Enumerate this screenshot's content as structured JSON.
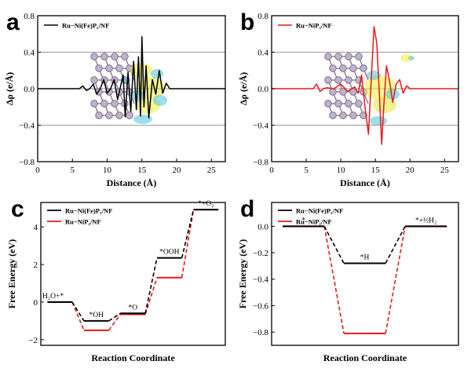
{
  "chart_data": [
    {
      "id": "a",
      "panel_label": "a",
      "type": "line",
      "title": "",
      "xlabel": "Distance (Å)",
      "ylabel": "Δρ (e/Å)",
      "xlim": [
        0,
        27
      ],
      "ylim": [
        -0.8,
        0.8
      ],
      "xticks": [
        "0",
        "5",
        "10",
        "15",
        "20",
        "25"
      ],
      "xtick_values": [
        0,
        5,
        10,
        15,
        20,
        25
      ],
      "yticks": [
        "−0.8",
        "−0.4",
        "0.0",
        "0.4",
        "0.8"
      ],
      "ytick_values": [
        -0.8,
        -0.4,
        0.0,
        0.4,
        0.8
      ],
      "gridlines_y": [
        -0.4,
        0.0,
        0.4
      ],
      "legend_position": "top-left",
      "series": [
        {
          "name": "Ru−Ni(Fe)P₂/NF",
          "color": "#000000",
          "x": [
            0,
            6.0,
            6.5,
            7.0,
            7.5,
            8.0,
            8.5,
            9.0,
            9.5,
            10.0,
            10.5,
            11.0,
            11.5,
            12.0,
            12.3,
            12.6,
            13.0,
            13.4,
            13.8,
            14.2,
            14.5,
            14.8,
            15.0,
            15.3,
            15.6,
            16.0,
            16.5,
            17.0,
            17.5,
            18.0,
            18.5,
            19.0,
            20.0,
            27
          ],
          "values": [
            0,
            0.0,
            0.03,
            -0.02,
            0.0,
            0.05,
            -0.06,
            0.0,
            0.1,
            -0.05,
            0.0,
            0.1,
            -0.12,
            0.05,
            0.15,
            -0.31,
            0.18,
            -0.25,
            0.3,
            -0.23,
            0.35,
            -0.3,
            0.57,
            -0.2,
            0.25,
            -0.32,
            0.1,
            -0.06,
            0.2,
            -0.05,
            0.06,
            0.0,
            0.0,
            0
          ]
        }
      ]
    },
    {
      "id": "b",
      "panel_label": "b",
      "type": "line",
      "title": "",
      "xlabel": "Distance (Å)",
      "ylabel": "Δρ (e/Å)",
      "xlim": [
        0,
        27
      ],
      "ylim": [
        -0.8,
        0.8
      ],
      "xticks": [
        "0",
        "5",
        "10",
        "15",
        "20",
        "25"
      ],
      "xtick_values": [
        0,
        5,
        10,
        15,
        20,
        25
      ],
      "yticks": [
        "−0.8",
        "−0.4",
        "0.0",
        "0.4",
        "0.8"
      ],
      "ytick_values": [
        -0.8,
        -0.4,
        0.0,
        0.4,
        0.8
      ],
      "gridlines_y": [
        -0.4,
        0.0,
        0.4
      ],
      "legend_position": "top-left",
      "series": [
        {
          "name": "Ru−NiP₂/NF",
          "color": "#e41a1c",
          "x": [
            0,
            6.0,
            6.5,
            7.0,
            7.5,
            8.0,
            9.0,
            10.0,
            11.0,
            12.0,
            12.5,
            13.0,
            13.5,
            14.0,
            14.4,
            14.8,
            15.2,
            15.6,
            15.9,
            16.2,
            16.6,
            17.0,
            17.5,
            18.0,
            18.5,
            19.0,
            19.5,
            20.0,
            27
          ],
          "values": [
            0,
            0.0,
            0.05,
            -0.03,
            0.0,
            0.01,
            0.0,
            0.05,
            -0.03,
            0.02,
            -0.05,
            0.15,
            -0.2,
            -0.5,
            0.1,
            0.68,
            0.5,
            -0.1,
            -0.61,
            -0.2,
            0.25,
            0.1,
            -0.15,
            0.05,
            0.1,
            -0.05,
            0.03,
            0.0,
            0
          ]
        }
      ]
    },
    {
      "id": "c",
      "panel_label": "c",
      "type": "line",
      "title": "",
      "xlabel": "Reaction Coordinate",
      "ylabel": "Free Energy (eV)",
      "ylim": [
        -2.3,
        5.3
      ],
      "yticks": [
        "−2",
        "0",
        "2",
        "4"
      ],
      "ytick_values": [
        -2,
        0,
        2,
        4
      ],
      "legend_position": "top-left",
      "steps": [
        "H₂O+*",
        "*OH",
        "*O",
        "*OOH",
        "*+O₂"
      ],
      "series": [
        {
          "name": "Ru−Ni(Fe)P₂/NF",
          "color": "#000000",
          "values": [
            0.0,
            -1.0,
            -0.6,
            2.35,
            4.92
          ]
        },
        {
          "name": "Ru−NiP₂/NF",
          "color": "#e41a1c",
          "values": [
            0.0,
            -1.5,
            -0.65,
            1.3,
            4.92
          ]
        }
      ]
    },
    {
      "id": "d",
      "panel_label": "d",
      "type": "line",
      "title": "",
      "xlabel": "Reaction Coordinate",
      "ylabel": "Free Energy (eV)",
      "ylim": [
        -0.9,
        0.18
      ],
      "yticks": [
        "−0.8",
        "−0.6",
        "−0.4",
        "−0.2",
        "0.0"
      ],
      "ytick_values": [
        -0.8,
        -0.6,
        -0.4,
        -0.2,
        0.0
      ],
      "legend_position": "top-left",
      "steps": [
        "*",
        "*H",
        "*+½H₂"
      ],
      "series": [
        {
          "name": "Ru−Ni(Fe)P₂/NF",
          "color": "#000000",
          "values": [
            0.0,
            -0.28,
            0.0
          ]
        },
        {
          "name": "Ru−NiP₂/NF",
          "color": "#e41a1c",
          "values": [
            0.0,
            -0.81,
            0.0
          ]
        }
      ]
    }
  ]
}
